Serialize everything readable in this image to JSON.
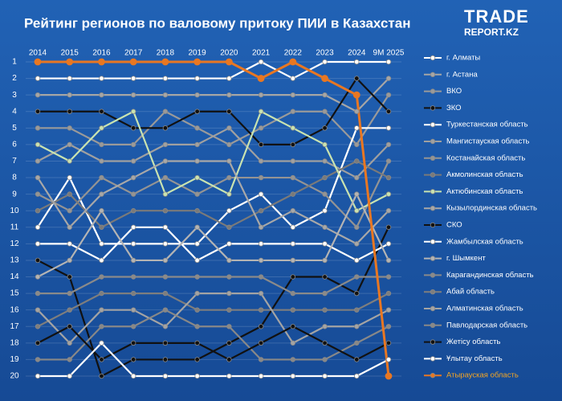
{
  "chart_data": {
    "type": "bump",
    "title": "Рейтинг регионов по валовому притоку ПИИ в Казахстан",
    "logo": {
      "line1": "TRADE",
      "line2": "REPORT.KZ"
    },
    "categories": [
      "2014",
      "2015",
      "2016",
      "2017",
      "2018",
      "2019",
      "2020",
      "2021",
      "2022",
      "2023",
      "2024",
      "9M 2025"
    ],
    "ylim": [
      1,
      20
    ],
    "reversed": true,
    "yticks": [
      1,
      2,
      3,
      4,
      5,
      6,
      7,
      8,
      9,
      10,
      11,
      12,
      13,
      14,
      15,
      16,
      17,
      18,
      19,
      20
    ],
    "grid": true,
    "series": [
      {
        "name": "г. Алматы",
        "color": "#ffffff",
        "values": [
          2,
          2,
          2,
          2,
          2,
          2,
          2,
          1,
          2,
          1,
          1,
          1
        ]
      },
      {
        "name": "г. Астана",
        "color": "#a6a6a6",
        "values": [
          3,
          3,
          3,
          3,
          3,
          3,
          3,
          3,
          3,
          3,
          4,
          2
        ]
      },
      {
        "name": "ВКО",
        "color": "#9a9a9a",
        "values": [
          5,
          5,
          6,
          6,
          4,
          5,
          6,
          5,
          4,
          4,
          6,
          3
        ]
      },
      {
        "name": "ЗКО",
        "color": "#111111",
        "values": [
          4,
          4,
          4,
          5,
          5,
          4,
          4,
          6,
          6,
          5,
          2,
          4
        ]
      },
      {
        "name": "Туркестанская область",
        "color": "#ffffff",
        "values": [
          11,
          8,
          12,
          12,
          12,
          12,
          10,
          9,
          11,
          10,
          5,
          5
        ]
      },
      {
        "name": "Мангистауская область",
        "color": "#a0a0a0",
        "values": [
          7,
          6,
          7,
          7,
          6,
          6,
          5,
          7,
          7,
          7,
          8,
          6
        ]
      },
      {
        "name": "Костанайская область",
        "color": "#949494",
        "values": [
          9,
          10,
          8,
          9,
          8,
          9,
          8,
          8,
          8,
          9,
          11,
          7
        ]
      },
      {
        "name": "Акмолинская область",
        "color": "#7a7a7a",
        "values": [
          10,
          9,
          11,
          10,
          10,
          10,
          11,
          10,
          9,
          8,
          7,
          8
        ]
      },
      {
        "name": "Актюбинская область",
        "color": "#c9e3b0",
        "values": [
          6,
          7,
          5,
          4,
          9,
          8,
          9,
          4,
          5,
          6,
          10,
          9
        ]
      },
      {
        "name": "Кызылординская область",
        "color": "#a8a8a8",
        "values": [
          8,
          11,
          9,
          8,
          7,
          7,
          7,
          11,
          10,
          11,
          12,
          10
        ]
      },
      {
        "name": "СКО",
        "color": "#111111",
        "values": [
          13,
          14,
          20,
          19,
          19,
          19,
          18,
          17,
          14,
          14,
          15,
          11
        ]
      },
      {
        "name": "Жамбылская область",
        "color": "#ffffff",
        "values": [
          12,
          12,
          13,
          11,
          11,
          13,
          12,
          12,
          12,
          12,
          13,
          12
        ]
      },
      {
        "name": "г. Шымкент",
        "color": "#b4b4b4",
        "values": [
          14,
          13,
          10,
          13,
          13,
          11,
          13,
          13,
          13,
          13,
          9,
          13
        ]
      },
      {
        "name": "Карагандинская область",
        "color": "#8a8a8a",
        "values": [
          15,
          15,
          14,
          14,
          14,
          14,
          14,
          14,
          15,
          15,
          14,
          14
        ]
      },
      {
        "name": "Абай область",
        "color": "#7e7e7e",
        "values": [
          17,
          16,
          15,
          15,
          15,
          16,
          16,
          16,
          16,
          16,
          16,
          15
        ]
      },
      {
        "name": "Алматинская область",
        "color": "#a4a4a4",
        "values": [
          16,
          18,
          16,
          16,
          17,
          15,
          15,
          15,
          18,
          17,
          17,
          16
        ]
      },
      {
        "name": "Павлодарская область",
        "color": "#888888",
        "values": [
          19,
          19,
          17,
          17,
          16,
          17,
          17,
          19,
          19,
          19,
          18,
          17
        ]
      },
      {
        "name": "Жетісу область",
        "color": "#111111",
        "values": [
          18,
          17,
          19,
          18,
          18,
          18,
          19,
          18,
          17,
          18,
          19,
          18
        ]
      },
      {
        "name": "Ұлытау область",
        "color": "#ffffff",
        "values": [
          20,
          20,
          18,
          20,
          20,
          20,
          20,
          20,
          20,
          20,
          20,
          19
        ]
      },
      {
        "name": "Атырауская область",
        "color": "#e87722",
        "legend_text_color": "#f5a623",
        "values": [
          1,
          1,
          1,
          1,
          1,
          1,
          1,
          2,
          1,
          2,
          3,
          20
        ]
      }
    ]
  }
}
